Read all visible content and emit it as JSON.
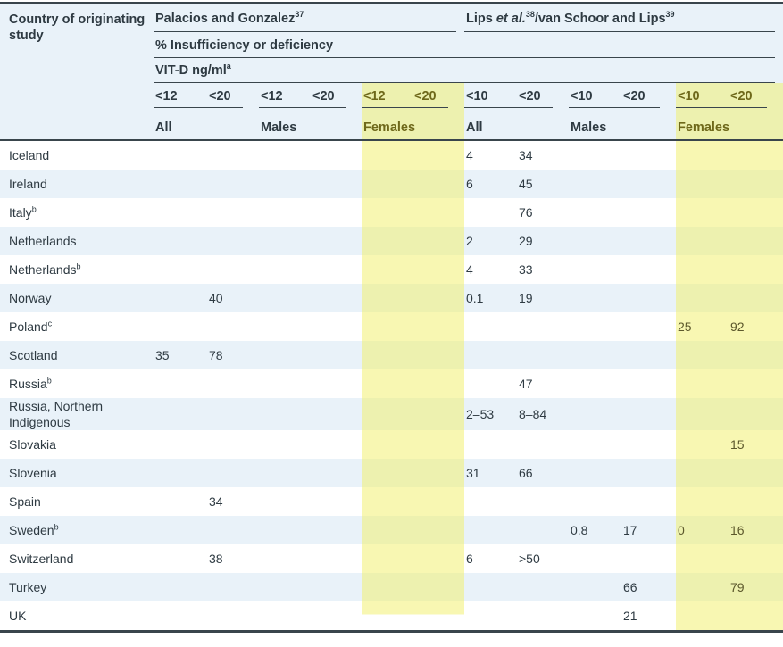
{
  "header": {
    "country_label": "Country of originating study",
    "group1_parts": [
      {
        "t": "Palacios and Gonzalez"
      },
      {
        "sup": "37"
      }
    ],
    "group2_parts": [
      {
        "t": "Lips "
      },
      {
        "i": "et al."
      },
      {
        "sup": "38"
      },
      {
        "t": "/van Schoor and Lips"
      },
      {
        "sup": "39"
      }
    ],
    "measure_label": "% Insufficiency or deficiency",
    "unit_parts": [
      {
        "t": "VIT-D ng/ml"
      },
      {
        "sup": "a"
      }
    ],
    "thresholds": [
      "<12",
      "<20",
      "<12",
      "<20",
      "<12",
      "<20",
      "<10",
      "<20",
      "<10",
      "<20",
      "<10",
      "<20"
    ],
    "subgroups": [
      "All",
      "Males",
      "Females",
      "All",
      "Males",
      "Females"
    ]
  },
  "rows": [
    {
      "country_parts": [
        {
          "t": "Iceland"
        }
      ],
      "cells": [
        "",
        "",
        "",
        "",
        "",
        "",
        "4",
        "34",
        "",
        "",
        "",
        ""
      ]
    },
    {
      "country_parts": [
        {
          "t": "Ireland"
        }
      ],
      "cells": [
        "",
        "",
        "",
        "",
        "",
        "",
        "6",
        "45",
        "",
        "",
        "",
        ""
      ]
    },
    {
      "country_parts": [
        {
          "t": "Italy"
        },
        {
          "sup": "b"
        }
      ],
      "cells": [
        "",
        "",
        "",
        "",
        "",
        "",
        "",
        "76",
        "",
        "",
        "",
        ""
      ]
    },
    {
      "country_parts": [
        {
          "t": "Netherlands"
        }
      ],
      "cells": [
        "",
        "",
        "",
        "",
        "",
        "",
        "2",
        "29",
        "",
        "",
        "",
        ""
      ]
    },
    {
      "country_parts": [
        {
          "t": "Netherlands"
        },
        {
          "sup": "b"
        }
      ],
      "cells": [
        "",
        "",
        "",
        "",
        "",
        "",
        "4",
        "33",
        "",
        "",
        "",
        ""
      ]
    },
    {
      "country_parts": [
        {
          "t": "Norway"
        }
      ],
      "cells": [
        "",
        "40",
        "",
        "",
        "",
        "",
        "0.1",
        "19",
        "",
        "",
        "",
        ""
      ]
    },
    {
      "country_parts": [
        {
          "t": "Poland"
        },
        {
          "sup": "c"
        }
      ],
      "cells": [
        "",
        "",
        "",
        "",
        "",
        "",
        "",
        "",
        "",
        "",
        "25",
        "92"
      ]
    },
    {
      "country_parts": [
        {
          "t": "Scotland"
        }
      ],
      "cells": [
        "35",
        "78",
        "",
        "",
        "",
        "",
        "",
        "",
        "",
        "",
        "",
        ""
      ]
    },
    {
      "country_parts": [
        {
          "t": "Russia"
        },
        {
          "sup": "b"
        }
      ],
      "cells": [
        "",
        "",
        "",
        "",
        "",
        "",
        "",
        "47",
        "",
        "",
        "",
        ""
      ]
    },
    {
      "country_parts": [
        {
          "t": "Russia, Northern Indigenous"
        }
      ],
      "cells": [
        "",
        "",
        "",
        "",
        "",
        "",
        "2–53",
        "8–84",
        "",
        "",
        "",
        ""
      ]
    },
    {
      "country_parts": [
        {
          "t": "Slovakia"
        }
      ],
      "cells": [
        "",
        "",
        "",
        "",
        "",
        "",
        "",
        "",
        "",
        "",
        "",
        "15"
      ]
    },
    {
      "country_parts": [
        {
          "t": "Slovenia"
        }
      ],
      "cells": [
        "",
        "",
        "",
        "",
        "",
        "",
        "31",
        "66",
        "",
        "",
        "",
        ""
      ]
    },
    {
      "country_parts": [
        {
          "t": "Spain"
        }
      ],
      "cells": [
        "",
        "34",
        "",
        "",
        "",
        "",
        "",
        "",
        "",
        "",
        "",
        ""
      ]
    },
    {
      "country_parts": [
        {
          "t": "Sweden"
        },
        {
          "sup": "b"
        }
      ],
      "cells": [
        "",
        "",
        "",
        "",
        "",
        "",
        "",
        "",
        "0.8",
        "17",
        "0",
        "16"
      ]
    },
    {
      "country_parts": [
        {
          "t": "Switzerland"
        }
      ],
      "cells": [
        "",
        "38",
        "",
        "",
        "",
        "",
        "6",
        ">50",
        "",
        "",
        "",
        ""
      ]
    },
    {
      "country_parts": [
        {
          "t": "Turkey"
        }
      ],
      "cells": [
        "",
        "",
        "",
        "",
        "",
        "",
        "",
        "",
        "",
        "66",
        "",
        "79"
      ]
    },
    {
      "country_parts": [
        {
          "t": "UK"
        }
      ],
      "cells": [
        "",
        "",
        "",
        "",
        "",
        "",
        "",
        "",
        "",
        "21",
        "",
        ""
      ]
    }
  ],
  "colors": {
    "stripe": "#e9f2f9",
    "hl": "rgba(241,240,108,0.52)",
    "border": "#39454c",
    "text": "#2e3a42",
    "olive": "#6e681a",
    "olive-val": "#5c582c"
  }
}
